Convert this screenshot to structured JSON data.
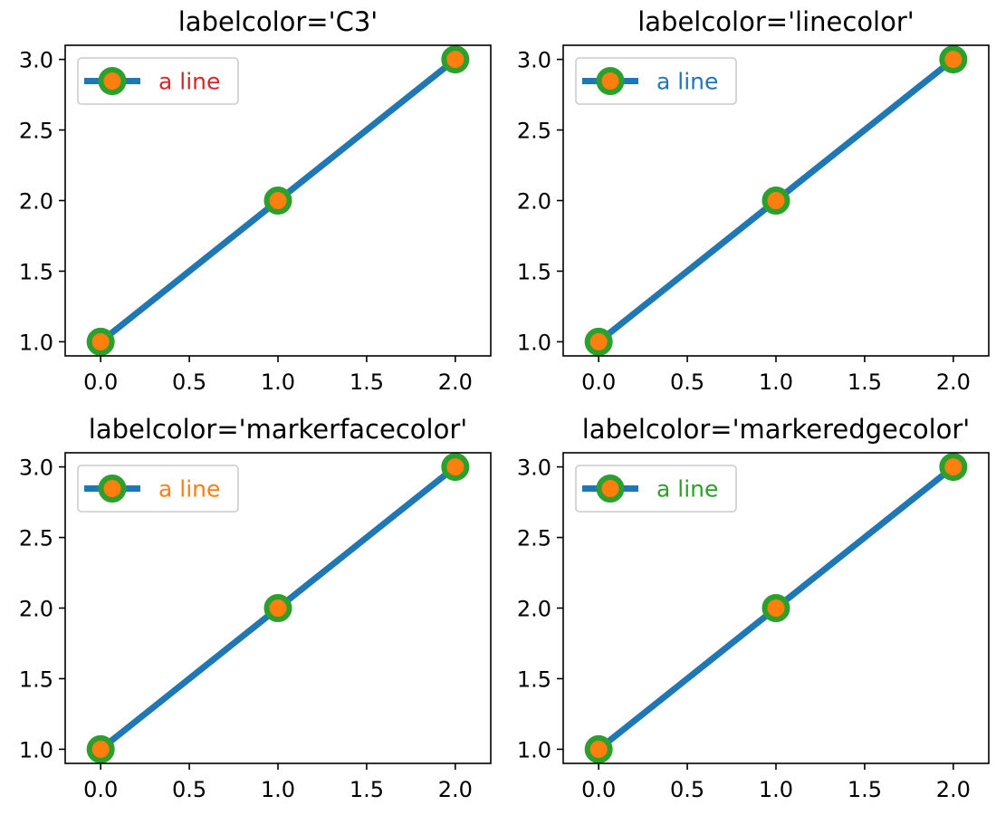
{
  "colors": {
    "line": "#1f77b4",
    "marker_face": "#ff7f0e",
    "marker_edge": "#2ca02c",
    "axes": "#000000",
    "legend_border": "#cccccc"
  },
  "chart_data": [
    {
      "type": "line",
      "title": "labelcolor='C3'",
      "x": [
        0,
        1,
        2
      ],
      "series": [
        {
          "name": "a line",
          "values": [
            1,
            2,
            3
          ]
        }
      ],
      "xlim": [
        -0.2,
        2.2
      ],
      "ylim": [
        0.9,
        3.1
      ],
      "xticks": [
        "0.0",
        "0.5",
        "1.0",
        "1.5",
        "2.0"
      ],
      "yticks": [
        "1.0",
        "1.5",
        "2.0",
        "2.5",
        "3.0"
      ],
      "grid": false,
      "legend_position": "upper left",
      "legend_text_color": "#d62728"
    },
    {
      "type": "line",
      "title": "labelcolor='linecolor'",
      "x": [
        0,
        1,
        2
      ],
      "series": [
        {
          "name": "a line",
          "values": [
            1,
            2,
            3
          ]
        }
      ],
      "xlim": [
        -0.2,
        2.2
      ],
      "ylim": [
        0.9,
        3.1
      ],
      "xticks": [
        "0.0",
        "0.5",
        "1.0",
        "1.5",
        "2.0"
      ],
      "yticks": [
        "1.0",
        "1.5",
        "2.0",
        "2.5",
        "3.0"
      ],
      "grid": false,
      "legend_position": "upper left",
      "legend_text_color": "#1f77b4"
    },
    {
      "type": "line",
      "title": "labelcolor='markerfacecolor'",
      "x": [
        0,
        1,
        2
      ],
      "series": [
        {
          "name": "a line",
          "values": [
            1,
            2,
            3
          ]
        }
      ],
      "xlim": [
        -0.2,
        2.2
      ],
      "ylim": [
        0.9,
        3.1
      ],
      "xticks": [
        "0.0",
        "0.5",
        "1.0",
        "1.5",
        "2.0"
      ],
      "yticks": [
        "1.0",
        "1.5",
        "2.0",
        "2.5",
        "3.0"
      ],
      "grid": false,
      "legend_position": "upper left",
      "legend_text_color": "#ff7f0e"
    },
    {
      "type": "line",
      "title": "labelcolor='markeredgecolor'",
      "x": [
        0,
        1,
        2
      ],
      "series": [
        {
          "name": "a line",
          "values": [
            1,
            2,
            3
          ]
        }
      ],
      "xlim": [
        -0.2,
        2.2
      ],
      "ylim": [
        0.9,
        3.1
      ],
      "xticks": [
        "0.0",
        "0.5",
        "1.0",
        "1.5",
        "2.0"
      ],
      "yticks": [
        "1.0",
        "1.5",
        "2.0",
        "2.5",
        "3.0"
      ],
      "grid": false,
      "legend_position": "upper left",
      "legend_text_color": "#2ca02c"
    }
  ]
}
